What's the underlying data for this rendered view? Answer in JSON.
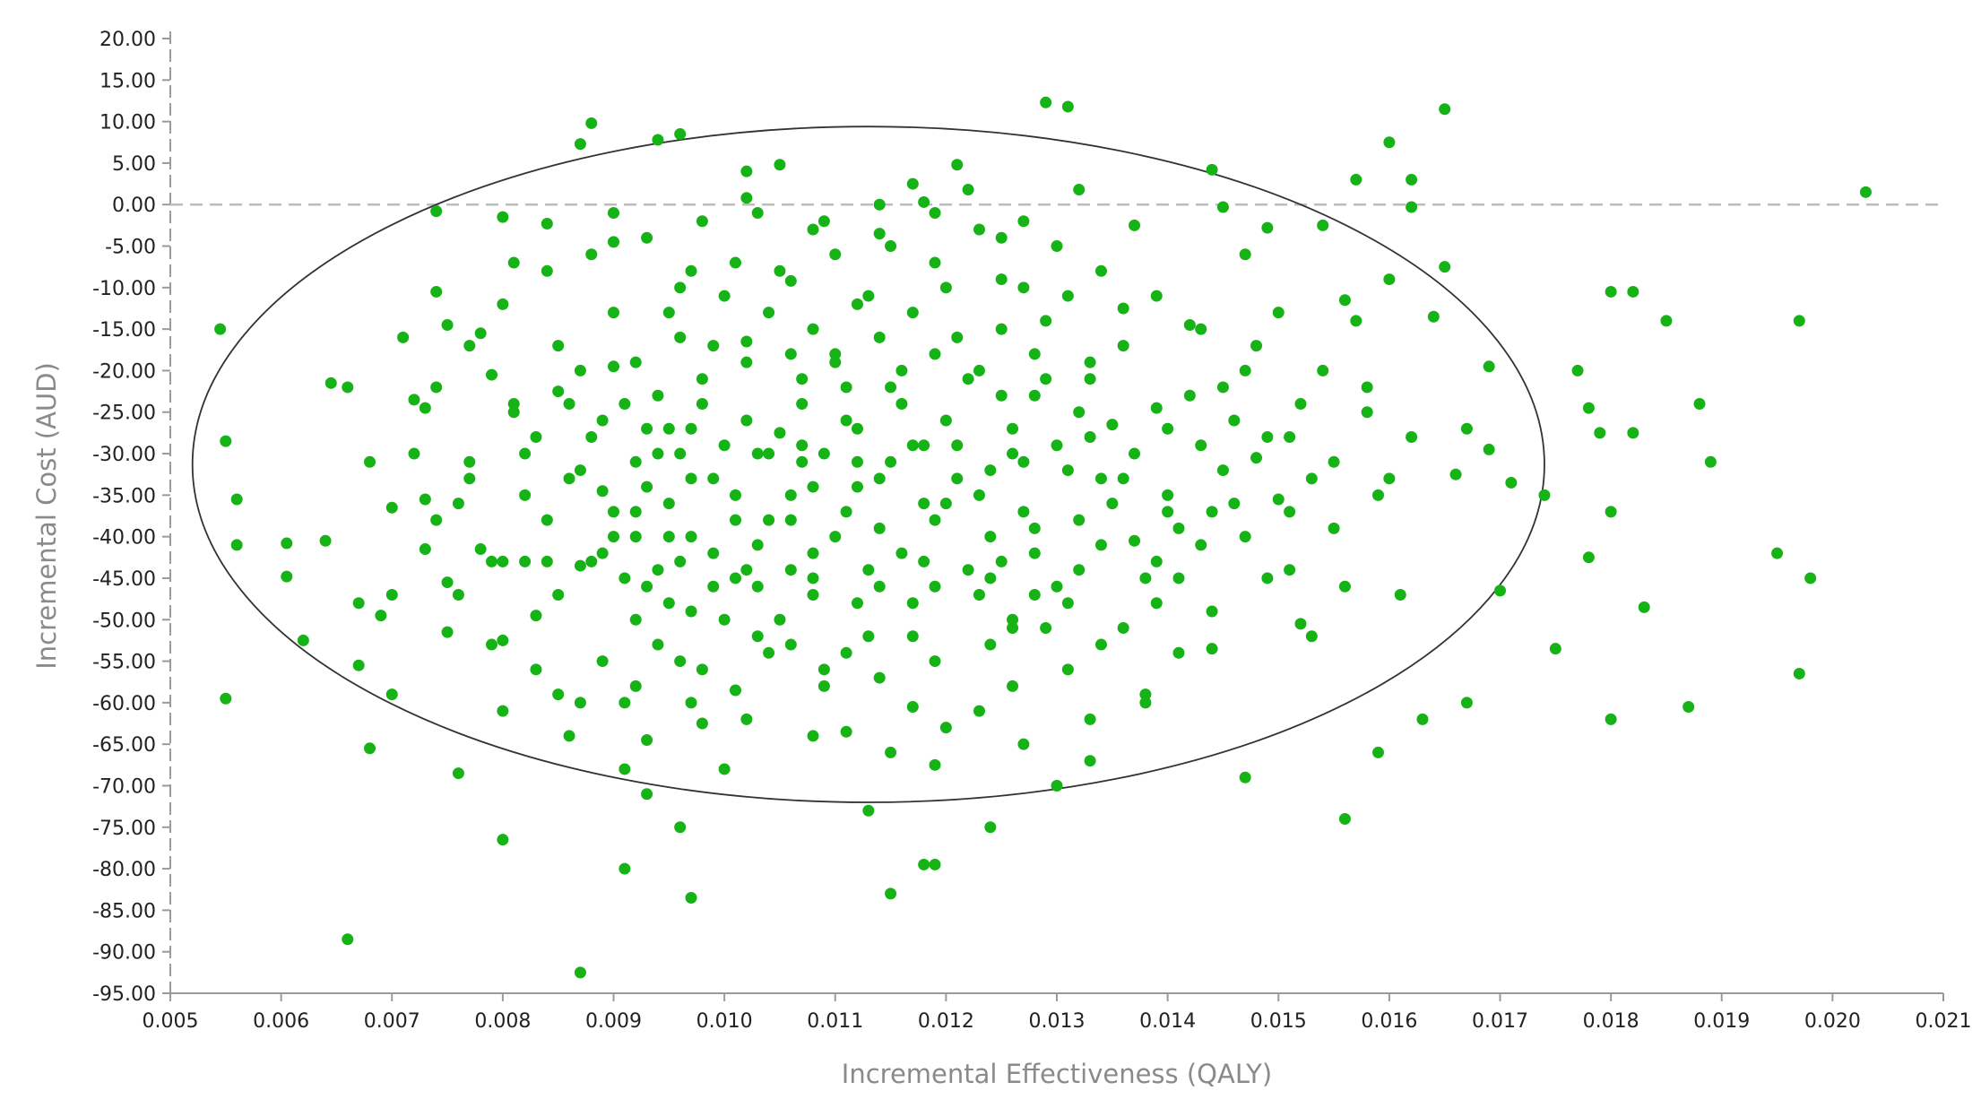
{
  "chart_data": {
    "type": "scatter",
    "title": "",
    "xlabel": "Incremental Effectiveness (QALY)",
    "ylabel": "Incremental Cost (AUD)",
    "xlim": [
      0.005,
      0.021
    ],
    "ylim": [
      -95,
      20
    ],
    "x_ticks": [
      "0.005",
      "0.006",
      "0.007",
      "0.008",
      "0.009",
      "0.010",
      "0.011",
      "0.012",
      "0.013",
      "0.014",
      "0.015",
      "0.016",
      "0.017",
      "0.018",
      "0.019",
      "0.020",
      "0.021"
    ],
    "y_ticks": [
      "20.00",
      "15.00",
      "10.00",
      "5.00",
      "0.00",
      "-5.00",
      "-10.00",
      "-15.00",
      "-20.00",
      "-25.00",
      "-30.00",
      "-35.00",
      "-40.00",
      "-45.00",
      "-50.00",
      "-55.00",
      "-60.00",
      "-65.00",
      "-70.00",
      "-75.00",
      "-80.00",
      "-85.00",
      "-90.00",
      "-95.00"
    ],
    "reference_line_y": 0,
    "ellipse": {
      "center_x": 0.0113,
      "center_y": -31.3,
      "semi_x": 0.0061,
      "semi_y": 40.7
    },
    "point_color": "#16b316",
    "grid": false,
    "points": [
      [
        0.00545,
        -15
      ],
      [
        0.0055,
        -28.5
      ],
      [
        0.0055,
        -59.5
      ],
      [
        0.0056,
        -35.5
      ],
      [
        0.0056,
        -41
      ],
      [
        0.00605,
        -40.8
      ],
      [
        0.00605,
        -44.8
      ],
      [
        0.0062,
        -52.5
      ],
      [
        0.0064,
        -40.5
      ],
      [
        0.00645,
        -21.5
      ],
      [
        0.0066,
        -22
      ],
      [
        0.0066,
        -88.5
      ],
      [
        0.0067,
        -55.5
      ],
      [
        0.0067,
        -48
      ],
      [
        0.0068,
        -31
      ],
      [
        0.0068,
        -65.5
      ],
      [
        0.0069,
        -49.5
      ],
      [
        0.007,
        -36.5
      ],
      [
        0.007,
        -47
      ],
      [
        0.007,
        -59
      ],
      [
        0.0071,
        -16
      ],
      [
        0.0072,
        -23.5
      ],
      [
        0.0073,
        -35.5
      ],
      [
        0.0073,
        -24.5
      ],
      [
        0.0073,
        -41.5
      ],
      [
        0.0074,
        -10.5
      ],
      [
        0.0074,
        -0.8
      ],
      [
        0.0075,
        -14.5
      ],
      [
        0.0075,
        -45.5
      ],
      [
        0.0075,
        -51.5
      ],
      [
        0.0076,
        -36
      ],
      [
        0.0076,
        -68.5
      ],
      [
        0.0077,
        -33
      ],
      [
        0.0078,
        -41.5
      ],
      [
        0.0078,
        -15.5
      ],
      [
        0.0079,
        -20.5
      ],
      [
        0.008,
        -52.5
      ],
      [
        0.008,
        -43
      ],
      [
        0.008,
        -61
      ],
      [
        0.008,
        -76.5
      ],
      [
        0.008,
        -1.5
      ],
      [
        0.0081,
        -7
      ],
      [
        0.0081,
        -25
      ],
      [
        0.0082,
        -30
      ],
      [
        0.0082,
        -43
      ],
      [
        0.0083,
        -49.5
      ],
      [
        0.0084,
        -2.3
      ],
      [
        0.0085,
        -22.5
      ],
      [
        0.0085,
        -59
      ],
      [
        0.0086,
        -64
      ],
      [
        0.0087,
        -43.5
      ],
      [
        0.0087,
        7.3
      ],
      [
        0.0087,
        -92.5
      ],
      [
        0.0088,
        9.8
      ],
      [
        0.0089,
        -26
      ],
      [
        0.0089,
        -34.5
      ],
      [
        0.009,
        -1
      ],
      [
        0.009,
        -4.5
      ],
      [
        0.009,
        -19.5
      ],
      [
        0.009,
        -40
      ],
      [
        0.0091,
        -60
      ],
      [
        0.0091,
        -68
      ],
      [
        0.0091,
        -80
      ],
      [
        0.0092,
        -37
      ],
      [
        0.0092,
        -50
      ],
      [
        0.0093,
        -64.5
      ],
      [
        0.0093,
        -71
      ],
      [
        0.0094,
        7.8
      ],
      [
        0.0094,
        -30
      ],
      [
        0.0094,
        -44
      ],
      [
        0.0095,
        -13
      ],
      [
        0.0095,
        -27
      ],
      [
        0.0096,
        -55
      ],
      [
        0.0096,
        -75
      ],
      [
        0.0096,
        8.5
      ],
      [
        0.0097,
        -83.5
      ],
      [
        0.0097,
        -8
      ],
      [
        0.0097,
        -40
      ],
      [
        0.0098,
        -62.5
      ],
      [
        0.0098,
        -24
      ],
      [
        0.0099,
        -46
      ],
      [
        0.01,
        -68
      ],
      [
        0.0101,
        -58.5
      ],
      [
        0.0101,
        -35
      ],
      [
        0.0102,
        4
      ],
      [
        0.0102,
        0.8
      ],
      [
        0.0102,
        -16.5
      ],
      [
        0.0103,
        -30
      ],
      [
        0.0103,
        -52
      ],
      [
        0.0105,
        4.8
      ],
      [
        0.0104,
        -38
      ],
      [
        0.0105,
        -27.5
      ],
      [
        0.0106,
        -9.2
      ],
      [
        0.0106,
        -44
      ],
      [
        0.0107,
        -21
      ],
      [
        0.0108,
        -3
      ],
      [
        0.0108,
        -34
      ],
      [
        0.0109,
        -56
      ],
      [
        0.011,
        -40
      ],
      [
        0.011,
        -18
      ],
      [
        0.0111,
        -26
      ],
      [
        0.0111,
        -63.5
      ],
      [
        0.0112,
        -12
      ],
      [
        0.0112,
        -48
      ],
      [
        0.0113,
        -73
      ],
      [
        0.0114,
        -33
      ],
      [
        0.0114,
        -3.5
      ],
      [
        0.0115,
        -83
      ],
      [
        0.0115,
        -22
      ],
      [
        0.0116,
        -42
      ],
      [
        0.0117,
        2.5
      ],
      [
        0.0117,
        -60.5
      ],
      [
        0.0118,
        -29
      ],
      [
        0.0118,
        0.3
      ],
      [
        0.0118,
        -79.5
      ],
      [
        0.0119,
        -79.5
      ],
      [
        0.0119,
        -67.5
      ],
      [
        0.012,
        -10
      ],
      [
        0.012,
        -36
      ],
      [
        0.0121,
        4.8
      ],
      [
        0.0122,
        1.8
      ],
      [
        0.0122,
        -21
      ],
      [
        0.0123,
        -61
      ],
      [
        0.0124,
        -75
      ],
      [
        0.0124,
        -45
      ],
      [
        0.0125,
        -15
      ],
      [
        0.0126,
        -30
      ],
      [
        0.0126,
        -51
      ],
      [
        0.0127,
        -2
      ],
      [
        0.0128,
        -39
      ],
      [
        0.0128,
        -23
      ],
      [
        0.0129,
        12.3
      ],
      [
        0.013,
        -70
      ],
      [
        0.0131,
        -48
      ],
      [
        0.0131,
        11.8
      ],
      [
        0.0132,
        1.8
      ],
      [
        0.0133,
        -67
      ],
      [
        0.0133,
        -19
      ],
      [
        0.0134,
        -33
      ],
      [
        0.0135,
        -26.5
      ],
      [
        0.0136,
        -12.5
      ],
      [
        0.0137,
        -40.5
      ],
      [
        0.0137,
        -2.5
      ],
      [
        0.0138,
        -59
      ],
      [
        0.0139,
        -24.5
      ],
      [
        0.014,
        -37
      ],
      [
        0.0141,
        -45
      ],
      [
        0.0142,
        -14.5
      ],
      [
        0.0143,
        -29
      ],
      [
        0.0144,
        4.2
      ],
      [
        0.0144,
        -53.5
      ],
      [
        0.0145,
        -0.3
      ],
      [
        0.0145,
        -22
      ],
      [
        0.0146,
        -36
      ],
      [
        0.0147,
        -6
      ],
      [
        0.0147,
        -69
      ],
      [
        0.0148,
        -30.5
      ],
      [
        0.0149,
        -2.8
      ],
      [
        0.015,
        -13
      ],
      [
        0.015,
        -35.5
      ],
      [
        0.0152,
        -50.5
      ],
      [
        0.0152,
        -24
      ],
      [
        0.0154,
        -2.5
      ],
      [
        0.0155,
        -31
      ],
      [
        0.0156,
        -11.5
      ],
      [
        0.0156,
        -46
      ],
      [
        0.0156,
        -74
      ],
      [
        0.0157,
        3
      ],
      [
        0.0158,
        -22
      ],
      [
        0.0159,
        -35
      ],
      [
        0.0159,
        -66
      ],
      [
        0.016,
        -9
      ],
      [
        0.016,
        7.5
      ],
      [
        0.016,
        -33
      ],
      [
        0.0161,
        -47
      ],
      [
        0.0162,
        3
      ],
      [
        0.0162,
        -0.3
      ],
      [
        0.0162,
        -28
      ],
      [
        0.0163,
        -62
      ],
      [
        0.0164,
        -13.5
      ],
      [
        0.0165,
        11.5
      ],
      [
        0.0165,
        -7.5
      ],
      [
        0.0166,
        -32.5
      ],
      [
        0.0167,
        -60
      ],
      [
        0.0167,
        -27
      ],
      [
        0.0169,
        -19.5
      ],
      [
        0.0169,
        -29.5
      ],
      [
        0.017,
        -46.5
      ],
      [
        0.0171,
        -33.5
      ],
      [
        0.0174,
        -35
      ],
      [
        0.0175,
        -53.5
      ],
      [
        0.0177,
        -20
      ],
      [
        0.0178,
        -24.5
      ],
      [
        0.0178,
        -42.5
      ],
      [
        0.0179,
        -27.5
      ],
      [
        0.018,
        -37
      ],
      [
        0.018,
        -10.5
      ],
      [
        0.018,
        -62
      ],
      [
        0.0182,
        -10.5
      ],
      [
        0.0182,
        -27.5
      ],
      [
        0.0183,
        -48.5
      ],
      [
        0.0185,
        -14
      ],
      [
        0.0187,
        -60.5
      ],
      [
        0.0188,
        -24
      ],
      [
        0.0189,
        -31
      ],
      [
        0.0195,
        -42
      ],
      [
        0.0197,
        -14
      ],
      [
        0.0197,
        -56.5
      ],
      [
        0.0198,
        -45
      ],
      [
        0.0203,
        1.5
      ],
      [
        0.0088,
        -28
      ],
      [
        0.0092,
        -31
      ],
      [
        0.0095,
        -36
      ],
      [
        0.0099,
        -33
      ],
      [
        0.0103,
        -41
      ],
      [
        0.0106,
        -38
      ],
      [
        0.0109,
        -30
      ],
      [
        0.0112,
        -34
      ],
      [
        0.0115,
        -31
      ],
      [
        0.0118,
        -36
      ],
      [
        0.0121,
        -33
      ],
      [
        0.0124,
        -40
      ],
      [
        0.0127,
        -37
      ],
      [
        0.0098,
        -21
      ],
      [
        0.0102,
        -19
      ],
      [
        0.0107,
        -24
      ],
      [
        0.0111,
        -22
      ],
      [
        0.0116,
        -20
      ],
      [
        0.012,
        -26
      ],
      [
        0.0125,
        -23
      ],
      [
        0.0129,
        -21
      ],
      [
        0.0093,
        -46
      ],
      [
        0.0097,
        -49
      ],
      [
        0.0101,
        -45
      ],
      [
        0.0105,
        -50
      ],
      [
        0.0108,
        -47
      ],
      [
        0.0113,
        -52
      ],
      [
        0.0117,
        -48
      ],
      [
        0.0122,
        -44
      ],
      [
        0.0126,
        -50
      ],
      [
        0.013,
        -46
      ],
      [
        0.0084,
        -38
      ],
      [
        0.0086,
        -33
      ],
      [
        0.0089,
        -42
      ],
      [
        0.0091,
        -24
      ],
      [
        0.0096,
        -16
      ],
      [
        0.01,
        -11
      ],
      [
        0.0104,
        -13
      ],
      [
        0.0108,
        -15
      ],
      [
        0.0113,
        -11
      ],
      [
        0.0117,
        -13
      ],
      [
        0.0121,
        -16
      ],
      [
        0.0125,
        -9
      ],
      [
        0.0129,
        -14
      ],
      [
        0.0133,
        -21
      ],
      [
        0.0135,
        -36
      ],
      [
        0.0138,
        -45
      ],
      [
        0.0136,
        -51
      ],
      [
        0.0131,
        -56
      ],
      [
        0.0126,
        -58
      ],
      [
        0.0119,
        -55
      ],
      [
        0.0114,
        -57
      ],
      [
        0.0109,
        -58
      ],
      [
        0.0104,
        -54
      ],
      [
        0.0098,
        -56
      ],
      [
        0.0094,
        -53
      ],
      [
        0.0089,
        -55
      ],
      [
        0.0085,
        -47
      ],
      [
        0.0082,
        -35
      ],
      [
        0.0083,
        -28
      ],
      [
        0.0087,
        -20
      ],
      [
        0.0092,
        -19
      ],
      [
        0.0097,
        -27
      ],
      [
        0.0102,
        -26
      ],
      [
        0.0107,
        -29
      ],
      [
        0.0112,
        -27
      ],
      [
        0.0116,
        -24
      ],
      [
        0.0121,
        -29
      ],
      [
        0.0126,
        -27
      ],
      [
        0.0131,
        -32
      ],
      [
        0.0134,
        -41
      ],
      [
        0.0132,
        -44
      ],
      [
        0.0128,
        -42
      ],
      [
        0.0123,
        -47
      ],
      [
        0.0118,
        -43
      ],
      [
        0.0113,
        -44
      ],
      [
        0.0108,
        -42
      ],
      [
        0.0103,
        -46
      ],
      [
        0.0099,
        -42
      ],
      [
        0.0095,
        -40
      ],
      [
        0.009,
        -37
      ],
      [
        0.0087,
        -32
      ],
      [
        0.0094,
        -23
      ],
      [
        0.0099,
        -17
      ],
      [
        0.0106,
        -18
      ],
      [
        0.011,
        -19
      ],
      [
        0.0114,
        -16
      ],
      [
        0.0119,
        -18
      ],
      [
        0.0123,
        -20
      ],
      [
        0.0128,
        -18
      ],
      [
        0.0132,
        -25
      ],
      [
        0.0137,
        -30
      ],
      [
        0.014,
        -27
      ],
      [
        0.0141,
        -39
      ],
      [
        0.0139,
        -43
      ],
      [
        0.0079,
        -43
      ],
      [
        0.0077,
        -31
      ],
      [
        0.0081,
        -24
      ],
      [
        0.0085,
        -17
      ],
      [
        0.009,
        -13
      ],
      [
        0.0096,
        -10
      ],
      [
        0.0101,
        -7
      ],
      [
        0.0105,
        -8
      ],
      [
        0.011,
        -6
      ],
      [
        0.0115,
        -5
      ],
      [
        0.0119,
        -7
      ],
      [
        0.0123,
        -3
      ],
      [
        0.0127,
        -10
      ],
      [
        0.0131,
        -11
      ],
      [
        0.0136,
        -17
      ],
      [
        0.0142,
        -23
      ],
      [
        0.0145,
        -32
      ],
      [
        0.0143,
        -41
      ],
      [
        0.0139,
        -48
      ],
      [
        0.0134,
        -53
      ],
      [
        0.0129,
        -51
      ],
      [
        0.0124,
        -53
      ],
      [
        0.0117,
        -52
      ],
      [
        0.0111,
        -54
      ],
      [
        0.0106,
        -53
      ],
      [
        0.01,
        -50
      ],
      [
        0.0095,
        -48
      ],
      [
        0.0091,
        -45
      ],
      [
        0.0088,
        -43
      ],
      [
        0.0084,
        -43
      ],
      [
        0.0086,
        -24
      ],
      [
        0.0093,
        -27
      ],
      [
        0.0097,
        -33
      ],
      [
        0.0101,
        -38
      ],
      [
        0.0106,
        -35
      ],
      [
        0.0111,
        -37
      ],
      [
        0.0114,
        -39
      ],
      [
        0.0119,
        -38
      ],
      [
        0.0123,
        -35
      ],
      [
        0.0127,
        -31
      ],
      [
        0.013,
        -29
      ],
      [
        0.0133,
        -28
      ],
      [
        0.0124,
        -32
      ],
      [
        0.0117,
        -29
      ],
      [
        0.0112,
        -31
      ],
      [
        0.0107,
        -31
      ],
      [
        0.0104,
        -30
      ],
      [
        0.01,
        -29
      ],
      [
        0.0096,
        -30
      ],
      [
        0.0093,
        -34
      ],
      [
        0.0092,
        -40
      ],
      [
        0.0096,
        -43
      ],
      [
        0.0102,
        -44
      ],
      [
        0.0108,
        -45
      ],
      [
        0.0114,
        -46
      ],
      [
        0.0119,
        -46
      ],
      [
        0.0125,
        -43
      ],
      [
        0.0128,
        -47
      ],
      [
        0.0132,
        -38
      ],
      [
        0.0136,
        -33
      ],
      [
        0.014,
        -35
      ],
      [
        0.0144,
        -37
      ],
      [
        0.0147,
        -40
      ],
      [
        0.0149,
        -45
      ],
      [
        0.0146,
        -26
      ],
      [
        0.0148,
        -17
      ],
      [
        0.0151,
        -28
      ],
      [
        0.0153,
        -33
      ],
      [
        0.0154,
        -20
      ],
      [
        0.0157,
        -14
      ],
      [
        0.0158,
        -25
      ],
      [
        0.0155,
        -39
      ],
      [
        0.0153,
        -52
      ],
      [
        0.0151,
        -44
      ],
      [
        0.0144,
        -49
      ],
      [
        0.0141,
        -54
      ],
      [
        0.0138,
        -60
      ],
      [
        0.0133,
        -62
      ],
      [
        0.0127,
        -65
      ],
      [
        0.012,
        -63
      ],
      [
        0.0115,
        -66
      ],
      [
        0.0108,
        -64
      ],
      [
        0.0102,
        -62
      ],
      [
        0.0097,
        -60
      ],
      [
        0.0092,
        -58
      ],
      [
        0.0087,
        -60
      ],
      [
        0.0083,
        -56
      ],
      [
        0.0079,
        -53
      ],
      [
        0.0076,
        -47
      ],
      [
        0.0074,
        -38
      ],
      [
        0.0072,
        -30
      ],
      [
        0.0074,
        -22
      ],
      [
        0.0077,
        -17
      ],
      [
        0.008,
        -12
      ],
      [
        0.0084,
        -8
      ],
      [
        0.0088,
        -6
      ],
      [
        0.0093,
        -4
      ],
      [
        0.0098,
        -2
      ],
      [
        0.0103,
        -1
      ],
      [
        0.0109,
        -2
      ],
      [
        0.0114,
        0
      ],
      [
        0.0119,
        -1
      ],
      [
        0.0125,
        -4
      ],
      [
        0.013,
        -5
      ],
      [
        0.0134,
        -8
      ],
      [
        0.0139,
        -11
      ],
      [
        0.0143,
        -15
      ],
      [
        0.0147,
        -20
      ],
      [
        0.0149,
        -28
      ],
      [
        0.0151,
        -37
      ]
    ]
  }
}
